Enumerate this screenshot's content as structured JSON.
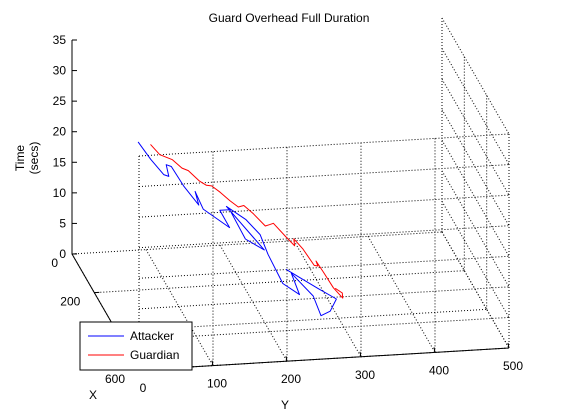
{
  "chart_data": {
    "type": "line",
    "title": "Guard Overhead Full Duration",
    "xlabel": "X",
    "ylabel": "Y",
    "zlabel_line1": "Time",
    "zlabel_line2": "(secs)",
    "xlim": [
      0,
      600
    ],
    "ylim": [
      0,
      500
    ],
    "zlim": [
      0,
      35
    ],
    "x_ticks": [
      "0",
      "200",
      "600"
    ],
    "y_ticks": [
      "0",
      "100",
      "200",
      "300",
      "400",
      "500"
    ],
    "z_ticks": [
      "0",
      "5",
      "10",
      "15",
      "20",
      "25",
      "30",
      "35"
    ],
    "grid": true,
    "legend_position": "bottom-left",
    "series": [
      {
        "name": "Attacker",
        "color": "#0000ff",
        "x": [
          140,
          290,
          380,
          470,
          520,
          450,
          360,
          500,
          470,
          350,
          280,
          230,
          190,
          450,
          420,
          300,
          330,
          450,
          380,
          320,
          420,
          350,
          280,
          300,
          390,
          410,
          360,
          300
        ],
        "y": [
          268,
          288,
          300,
          278,
          258,
          258,
          242,
          232,
          214,
          212,
          212,
          200,
          180,
          192,
          171,
          168,
          150,
          145,
          120,
          118,
          108,
          98,
          92,
          82,
          72,
          62,
          52,
          44
        ],
        "z": [
          0.0,
          1.5,
          2.5,
          3.5,
          4.5,
          5.5,
          6.5,
          7.5,
          8.5,
          9.5,
          10.5,
          11.5,
          12.5,
          13.5,
          14.5,
          15.5,
          16.5,
          17.5,
          18.5,
          19.5,
          20.5,
          21.5,
          22.5,
          23.5,
          24.5,
          25.5,
          26.5,
          27.5
        ]
      },
      {
        "name": "Guardian",
        "color": "#ff0000",
        "x": [
          250,
          300,
          350,
          320,
          260,
          230,
          280,
          300,
          240,
          210,
          270,
          250,
          200,
          230,
          260,
          220,
          200,
          230,
          220,
          200,
          190,
          210,
          210,
          180,
          190,
          170,
          180,
          190,
          160
        ],
        "y": [
          318,
          320,
          313,
          305,
          300,
          295,
          290,
          282,
          276,
          268,
          260,
          252,
          242,
          232,
          222,
          212,
          202,
          190,
          180,
          170,
          160,
          150,
          140,
          130,
          120,
          110,
          100,
          90,
          82
        ],
        "z": [
          0.0,
          0.8,
          1.6,
          2.4,
          3.2,
          4.0,
          4.8,
          5.6,
          6.4,
          7.2,
          8.0,
          8.8,
          9.6,
          10.4,
          11.2,
          12.0,
          12.8,
          13.6,
          14.4,
          15.2,
          16.0,
          16.8,
          17.6,
          18.4,
          19.2,
          20.0,
          20.8,
          21.6,
          22.4
        ]
      }
    ]
  }
}
